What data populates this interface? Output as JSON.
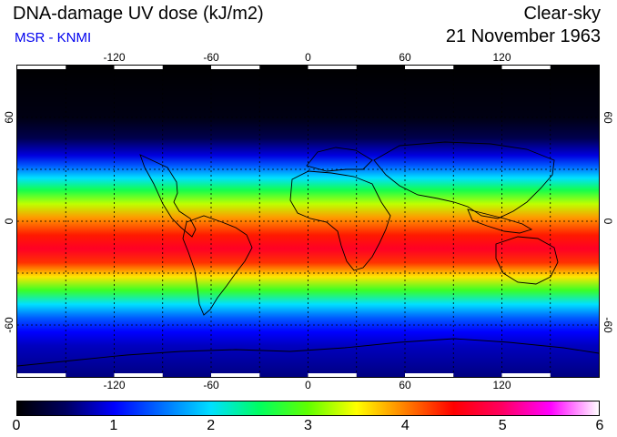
{
  "header": {
    "title": "DNA-damage UV dose (kJ/m2)",
    "subtitle": "MSR - KNMI",
    "condition": "Clear-sky",
    "date": "21 November 1963"
  },
  "map": {
    "lon_range": [
      -180,
      180
    ],
    "lat_range": [
      -90,
      90
    ],
    "lon_ticks": [
      "-120",
      "-60",
      "0",
      "60",
      "120"
    ],
    "lat_ticks": [
      "60",
      "0",
      "-60"
    ],
    "grid_lon": [
      -150,
      -120,
      -90,
      -60,
      -30,
      0,
      30,
      60,
      90,
      120,
      150
    ],
    "grid_lat": [
      -60,
      -30,
      0,
      30,
      60
    ],
    "dose_profile": [
      {
        "lat": 90,
        "dose": 0
      },
      {
        "lat": 60,
        "dose": 0.1
      },
      {
        "lat": 48,
        "dose": 0.4
      },
      {
        "lat": 38,
        "dose": 0.9
      },
      {
        "lat": 32,
        "dose": 1.4
      },
      {
        "lat": 25,
        "dose": 2.0
      },
      {
        "lat": 18,
        "dose": 2.6
      },
      {
        "lat": 10,
        "dose": 3.3
      },
      {
        "lat": 2,
        "dose": 3.9
      },
      {
        "lat": -8,
        "dose": 4.4
      },
      {
        "lat": -16,
        "dose": 4.7
      },
      {
        "lat": -24,
        "dose": 4.3
      },
      {
        "lat": -32,
        "dose": 3.6
      },
      {
        "lat": -40,
        "dose": 2.8
      },
      {
        "lat": -48,
        "dose": 2.0
      },
      {
        "lat": -56,
        "dose": 1.4
      },
      {
        "lat": -64,
        "dose": 1.0
      },
      {
        "lat": -72,
        "dose": 0.8
      },
      {
        "lat": -90,
        "dose": 0.6
      }
    ]
  },
  "colorbar": {
    "min": 0,
    "max": 6,
    "labels": [
      "0",
      "1",
      "2",
      "3",
      "4",
      "5",
      "6"
    ],
    "stops": [
      {
        "value": 0,
        "color": "#000000"
      },
      {
        "value": 0.5,
        "color": "#000060"
      },
      {
        "value": 1.0,
        "color": "#0000ff"
      },
      {
        "value": 1.5,
        "color": "#0070ff"
      },
      {
        "value": 2.0,
        "color": "#00e0ff"
      },
      {
        "value": 2.5,
        "color": "#00ff60"
      },
      {
        "value": 3.0,
        "color": "#60ff00"
      },
      {
        "value": 3.5,
        "color": "#ffff00"
      },
      {
        "value": 4.0,
        "color": "#ff8000"
      },
      {
        "value": 4.5,
        "color": "#ff0000"
      },
      {
        "value": 5.0,
        "color": "#ff0060"
      },
      {
        "value": 5.5,
        "color": "#ff00ff"
      },
      {
        "value": 6.0,
        "color": "#ffffff"
      }
    ]
  }
}
